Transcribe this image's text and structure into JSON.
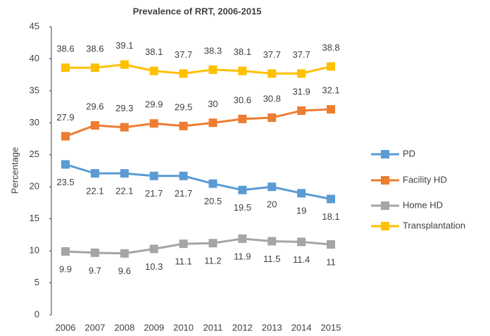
{
  "chart_data": {
    "type": "line",
    "title": "Prevalence of RRT, 2006-2015",
    "y_label": "Percentage",
    "categories": [
      "2006",
      "2007",
      "2008",
      "2009",
      "2010",
      "2011",
      "2012",
      "2013",
      "2014",
      "2015"
    ],
    "series": [
      {
        "name": "PD",
        "color": "#5b9bd5",
        "values": [
          23.5,
          22.1,
          22.1,
          21.7,
          21.7,
          20.5,
          19.5,
          20,
          19,
          18.1
        ],
        "label_position": "below"
      },
      {
        "name": "Facility HD",
        "color": "#ed7d31",
        "values": [
          27.9,
          29.6,
          29.3,
          29.9,
          29.5,
          30,
          30.6,
          30.8,
          31.9,
          32.1
        ],
        "label_position": "above"
      },
      {
        "name": "Home HD",
        "color": "#a5a5a5",
        "values": [
          9.9,
          9.7,
          9.6,
          10.3,
          11.1,
          11.2,
          11.9,
          11.5,
          11.4,
          11
        ],
        "label_position": "below"
      },
      {
        "name": "Transplantation",
        "color": "#ffc000",
        "values": [
          38.6,
          38.6,
          39.1,
          38.1,
          37.7,
          38.3,
          38.1,
          37.7,
          37.7,
          38.8
        ],
        "label_position": "above"
      }
    ],
    "ylim": [
      0,
      45
    ],
    "yticks": [
      0,
      5,
      10,
      15,
      20,
      25,
      30,
      35,
      40,
      45
    ],
    "grid": false,
    "legend": "right"
  }
}
